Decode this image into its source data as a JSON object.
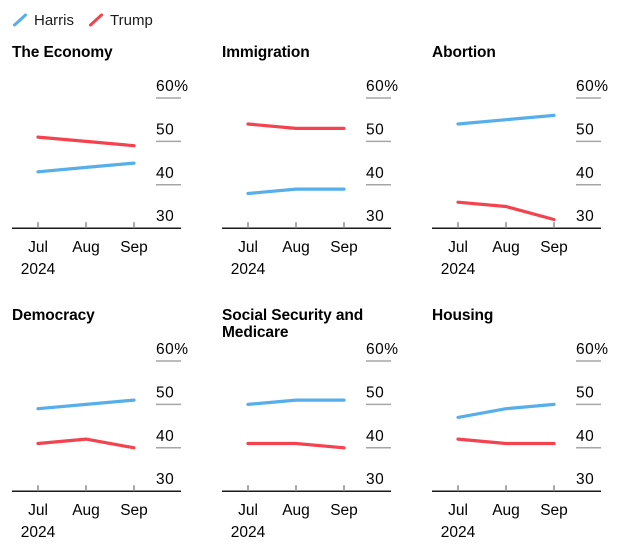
{
  "page": {
    "background": "#ffffff"
  },
  "colors": {
    "harris": "#56aeeb",
    "trump": "#f4434e",
    "grid_dash": "#a6a6a6",
    "axis_line": "#1a1a1a",
    "axis_tick": "#8c8c8c",
    "label_text": "#000000"
  },
  "legend": {
    "items": [
      {
        "label": "Harris",
        "color": "#56aeeb"
      },
      {
        "label": "Trump",
        "color": "#f4434e"
      }
    ]
  },
  "axis": {
    "y_ticks": [
      {
        "label": "60%",
        "value": 60
      },
      {
        "label": "50",
        "value": 50
      },
      {
        "label": "40",
        "value": 40
      },
      {
        "label": "30",
        "value": 30
      }
    ],
    "y_min": 30,
    "y_max": 60,
    "x_ticks": [
      "Jul",
      "Aug",
      "Sep"
    ],
    "x_year": "2024",
    "grid": "right-side tick dashes",
    "legend_position": "top-left"
  },
  "chart_data": [
    {
      "type": "line",
      "title": "The Economy",
      "x": [
        "Jul 2024",
        "Aug 2024",
        "Sep 2024"
      ],
      "ylim": [
        30,
        60
      ],
      "series": [
        {
          "name": "Harris",
          "color": "#56aeeb",
          "values": [
            43,
            44,
            45
          ]
        },
        {
          "name": "Trump",
          "color": "#f4434e",
          "values": [
            51,
            50,
            49
          ]
        }
      ]
    },
    {
      "type": "line",
      "title": "Immigration",
      "x": [
        "Jul 2024",
        "Aug 2024",
        "Sep 2024"
      ],
      "ylim": [
        30,
        60
      ],
      "series": [
        {
          "name": "Harris",
          "color": "#56aeeb",
          "values": [
            38,
            39,
            39
          ]
        },
        {
          "name": "Trump",
          "color": "#f4434e",
          "values": [
            54,
            53,
            53
          ]
        }
      ]
    },
    {
      "type": "line",
      "title": "Abortion",
      "x": [
        "Jul 2024",
        "Aug 2024",
        "Sep 2024"
      ],
      "ylim": [
        30,
        60
      ],
      "series": [
        {
          "name": "Harris",
          "color": "#56aeeb",
          "values": [
            54,
            55,
            56
          ]
        },
        {
          "name": "Trump",
          "color": "#f4434e",
          "values": [
            36,
            35,
            32
          ]
        }
      ]
    },
    {
      "type": "line",
      "title": "Democracy",
      "x": [
        "Jul 2024",
        "Aug 2024",
        "Sep 2024"
      ],
      "ylim": [
        30,
        60
      ],
      "series": [
        {
          "name": "Harris",
          "color": "#56aeeb",
          "values": [
            49,
            50,
            51
          ]
        },
        {
          "name": "Trump",
          "color": "#f4434e",
          "values": [
            41,
            42,
            40
          ]
        }
      ]
    },
    {
      "type": "line",
      "title": "Social Security and Medicare",
      "x": [
        "Jul 2024",
        "Aug 2024",
        "Sep 2024"
      ],
      "ylim": [
        30,
        60
      ],
      "series": [
        {
          "name": "Harris",
          "color": "#56aeeb",
          "values": [
            50,
            51,
            51
          ]
        },
        {
          "name": "Trump",
          "color": "#f4434e",
          "values": [
            41,
            41,
            40
          ]
        }
      ]
    },
    {
      "type": "line",
      "title": "Housing",
      "x": [
        "Jul 2024",
        "Aug 2024",
        "Sep 2024"
      ],
      "ylim": [
        30,
        60
      ],
      "series": [
        {
          "name": "Harris",
          "color": "#56aeeb",
          "values": [
            47,
            49,
            50
          ]
        },
        {
          "name": "Trump",
          "color": "#f4434e",
          "values": [
            42,
            41,
            41
          ]
        }
      ]
    }
  ]
}
